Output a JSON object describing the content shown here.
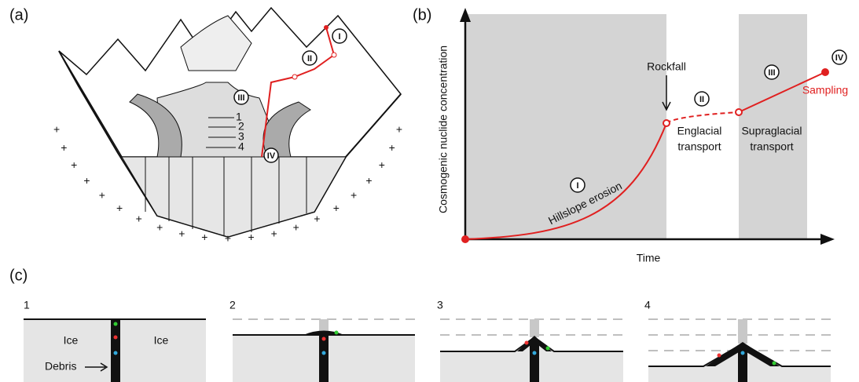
{
  "panel_a": {
    "label": "(a)",
    "stages": [
      "I",
      "II",
      "III",
      "IV"
    ],
    "sections": [
      "1",
      "2",
      "3",
      "4"
    ]
  },
  "panel_b": {
    "label": "(b)",
    "y_axis": "Cosmogenic nuclide concentration",
    "x_axis": "Time",
    "rockfall": "Rockfall",
    "stages": [
      "I",
      "II",
      "III",
      "IV"
    ],
    "hillslope": "Hillslope erosion",
    "englacial": [
      "Englacial",
      "transport"
    ],
    "supraglacial": [
      "Supraglacial",
      "transport"
    ],
    "sampling": "Sampling"
  },
  "panel_c": {
    "label": "(c)",
    "steps": [
      "1",
      "2",
      "3",
      "4"
    ],
    "ice_left": "Ice",
    "ice_right": "Ice",
    "debris": "Debris"
  }
}
